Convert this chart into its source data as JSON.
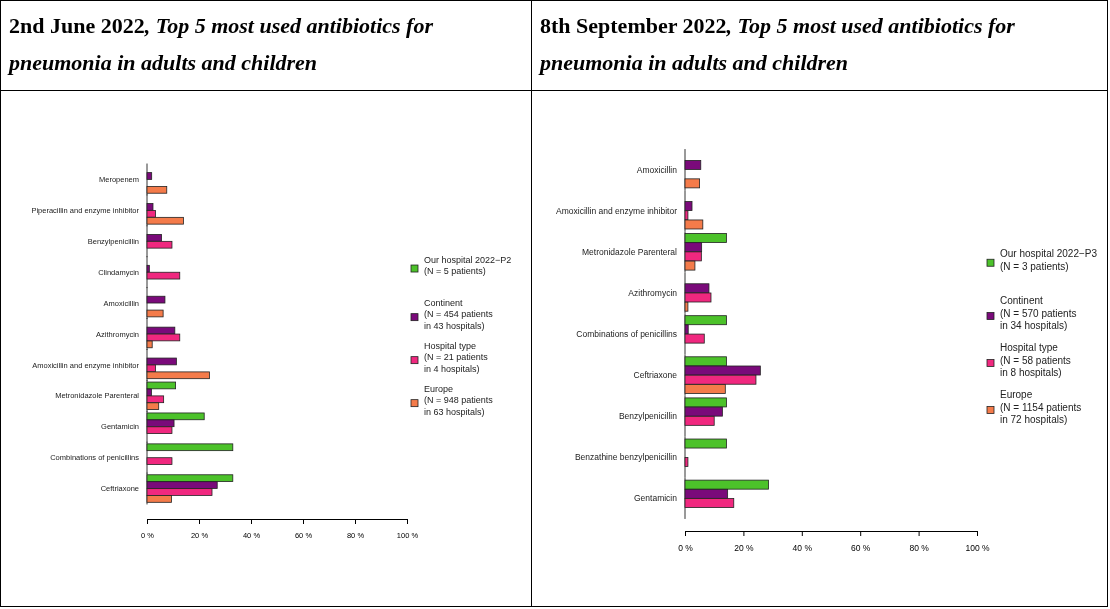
{
  "chart_data": [
    {
      "type": "bar",
      "orientation": "horizontal",
      "title": "2nd June 2022, Top 5 most used antibiotics for pneumonia in adults and children",
      "categories": [
        "Meropenem",
        "Piperacillin and enzyme inhibitor",
        "Benzylpenicillin",
        "Clindamycin",
        "Amoxicillin",
        "Azithromycin",
        "Amoxicillin and enzyme inhibitor",
        "Metronidazole Parenteral",
        "Gentamicin",
        "Combinations of penicillins",
        "Ceftriaxone"
      ],
      "series": [
        {
          "name": "Our hospital  2022−P2\n(N = 5 patients)",
          "color": "#4cc22a",
          "values": [
            0,
            0,
            0,
            0,
            0,
            0,
            0,
            11,
            22,
            33,
            33
          ]
        },
        {
          "name": "Continent\n(N = 454 patients\nin 43 hospitals)",
          "color": "#7a0a7a",
          "values": [
            1.8,
            2.3,
            5.6,
            0.9,
            6.9,
            10.7,
            11.3,
            1.7,
            10.4,
            0,
            27
          ]
        },
        {
          "name": "Hospital type\n(N = 21 patients\nin 4 hospitals)",
          "color": "#f0287f",
          "values": [
            0,
            3.3,
            9.6,
            12.6,
            0,
            12.6,
            3.3,
            6.4,
            9.6,
            9.6,
            25
          ]
        },
        {
          "name": "Europe\n(N = 948 patients\nin 63 hospitals)",
          "color": "#f47b4a",
          "values": [
            7.6,
            14,
            0,
            0,
            6.2,
            2,
            24,
            4.5,
            0,
            0,
            9.4
          ]
        }
      ],
      "xlim": [
        0,
        100
      ],
      "xticks": [
        {
          "value": 0,
          "label": "0 %"
        },
        {
          "value": 20,
          "label": "20 %"
        },
        {
          "value": 40,
          "label": "40 %"
        },
        {
          "value": 60,
          "label": "60 %"
        },
        {
          "value": 80,
          "label": "80 %"
        },
        {
          "value": 100,
          "label": "100 %"
        }
      ],
      "legend": "right",
      "grid": false
    },
    {
      "type": "bar",
      "orientation": "horizontal",
      "title": "8th September 2022, Top 5 most used antibiotics for pneumonia in adults and children",
      "categories": [
        "Amoxicillin",
        "Amoxicillin and enzyme inhibitor",
        "Metronidazole Parenteral",
        "Azithromycin",
        "Combinations of penicillins",
        "Ceftriaxone",
        "Benzylpenicillin",
        "Benzathine benzylpenicillin",
        "Gentamicin"
      ],
      "series": [
        {
          "name": "Our hospital  2022−P3\n(N = 3 patients)",
          "color": "#4cc22a",
          "values": [
            0,
            0,
            14.2,
            0,
            14.2,
            14.2,
            14.2,
            14.2,
            28.6
          ]
        },
        {
          "name": "Continent\n(N = 570 patients\nin 34 hospitals)",
          "color": "#7a0a7a",
          "values": [
            5.4,
            2.4,
            5.7,
            8.2,
            1.1,
            25.8,
            12.8,
            0,
            14.6
          ]
        },
        {
          "name": "Hospital type\n(N = 58 patients\nin 8 hospitals)",
          "color": "#f0287f",
          "values": [
            0,
            1,
            5.6,
            8.9,
            6.6,
            24.3,
            10,
            1,
            16.7
          ]
        },
        {
          "name": "Europe\n(N = 1154 patients\nin 72 hospitals)",
          "color": "#f47b4a",
          "values": [
            5,
            6.1,
            3.4,
            1,
            0,
            13.8,
            0,
            0,
            0
          ]
        }
      ],
      "xlim": [
        0,
        100
      ],
      "xticks": [
        {
          "value": 0,
          "label": "0 %"
        },
        {
          "value": 20,
          "label": "20 %"
        },
        {
          "value": 40,
          "label": "40 %"
        },
        {
          "value": 60,
          "label": "60 %"
        },
        {
          "value": 80,
          "label": "80 %"
        },
        {
          "value": 100,
          "label": "100 %"
        }
      ],
      "legend": "right",
      "grid": false
    }
  ]
}
